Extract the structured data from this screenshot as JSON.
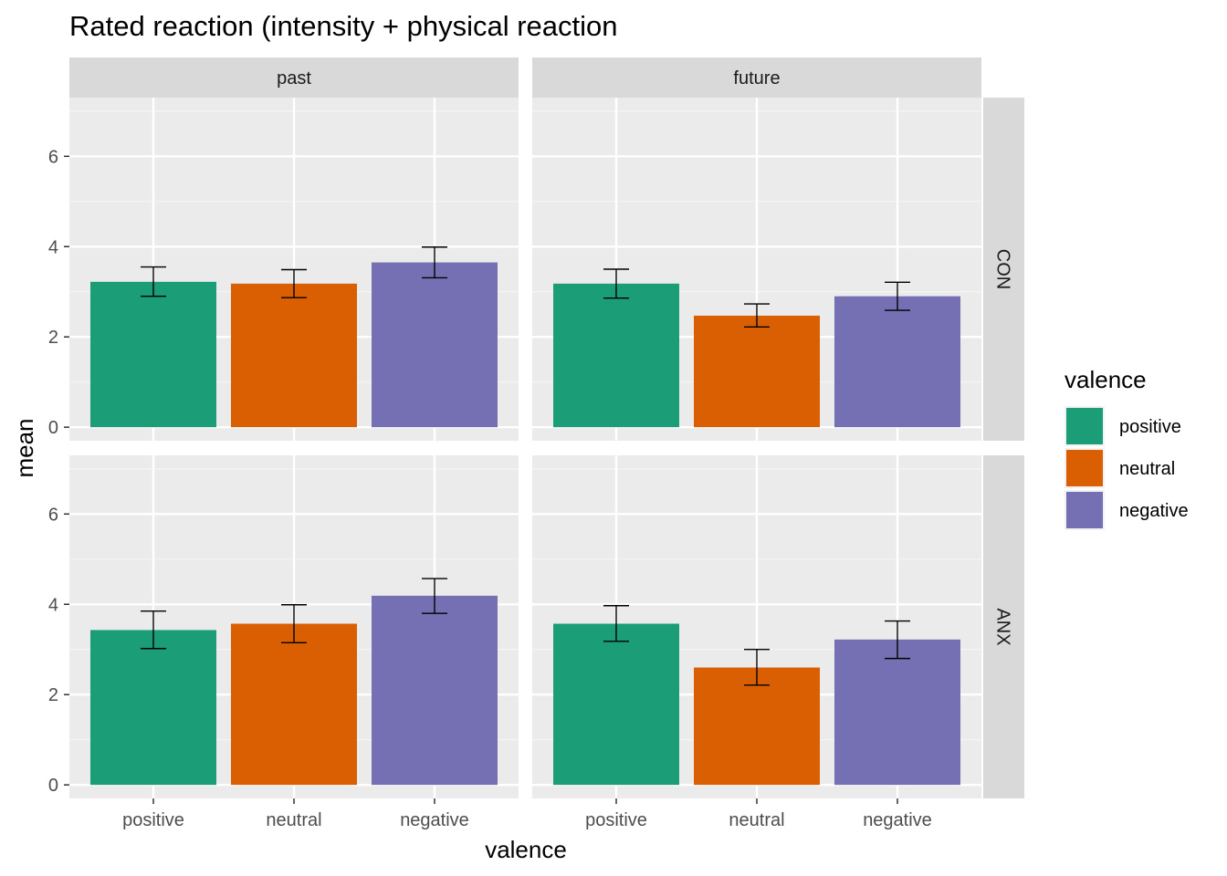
{
  "chart_data": {
    "type": "bar",
    "title": "Rated reaction (intensity + physical reaction",
    "xlabel": "valence",
    "ylabel": "mean",
    "categories": [
      "positive",
      "neutral",
      "negative"
    ],
    "ylim": [
      -0.3,
      7.3
    ],
    "yticks": [
      0,
      2,
      4,
      6
    ],
    "grid": true,
    "facet_columns": [
      "past",
      "future"
    ],
    "facet_rows": [
      "CON",
      "ANX"
    ],
    "legend": {
      "title": "valence",
      "position": "right",
      "items": [
        {
          "label": "positive",
          "color": "#1B9E77"
        },
        {
          "label": "neutral",
          "color": "#D95F02"
        },
        {
          "label": "negative",
          "color": "#7570B3"
        }
      ]
    },
    "panels": [
      {
        "col": "past",
        "row": "CON",
        "values": [
          3.22,
          3.18,
          3.65
        ],
        "err_low": [
          2.9,
          2.87,
          3.31
        ],
        "err_high": [
          3.55,
          3.49,
          3.99
        ]
      },
      {
        "col": "future",
        "row": "CON",
        "values": [
          3.18,
          2.47,
          2.9
        ],
        "err_low": [
          2.86,
          2.22,
          2.59
        ],
        "err_high": [
          3.5,
          2.73,
          3.21
        ]
      },
      {
        "col": "past",
        "row": "ANX",
        "values": [
          3.43,
          3.57,
          4.19
        ],
        "err_low": [
          3.02,
          3.15,
          3.8
        ],
        "err_high": [
          3.85,
          3.99,
          4.57
        ]
      },
      {
        "col": "future",
        "row": "ANX",
        "values": [
          3.57,
          2.6,
          3.22
        ],
        "err_low": [
          3.18,
          2.21,
          2.8
        ],
        "err_high": [
          3.97,
          3.0,
          3.63
        ]
      }
    ]
  }
}
